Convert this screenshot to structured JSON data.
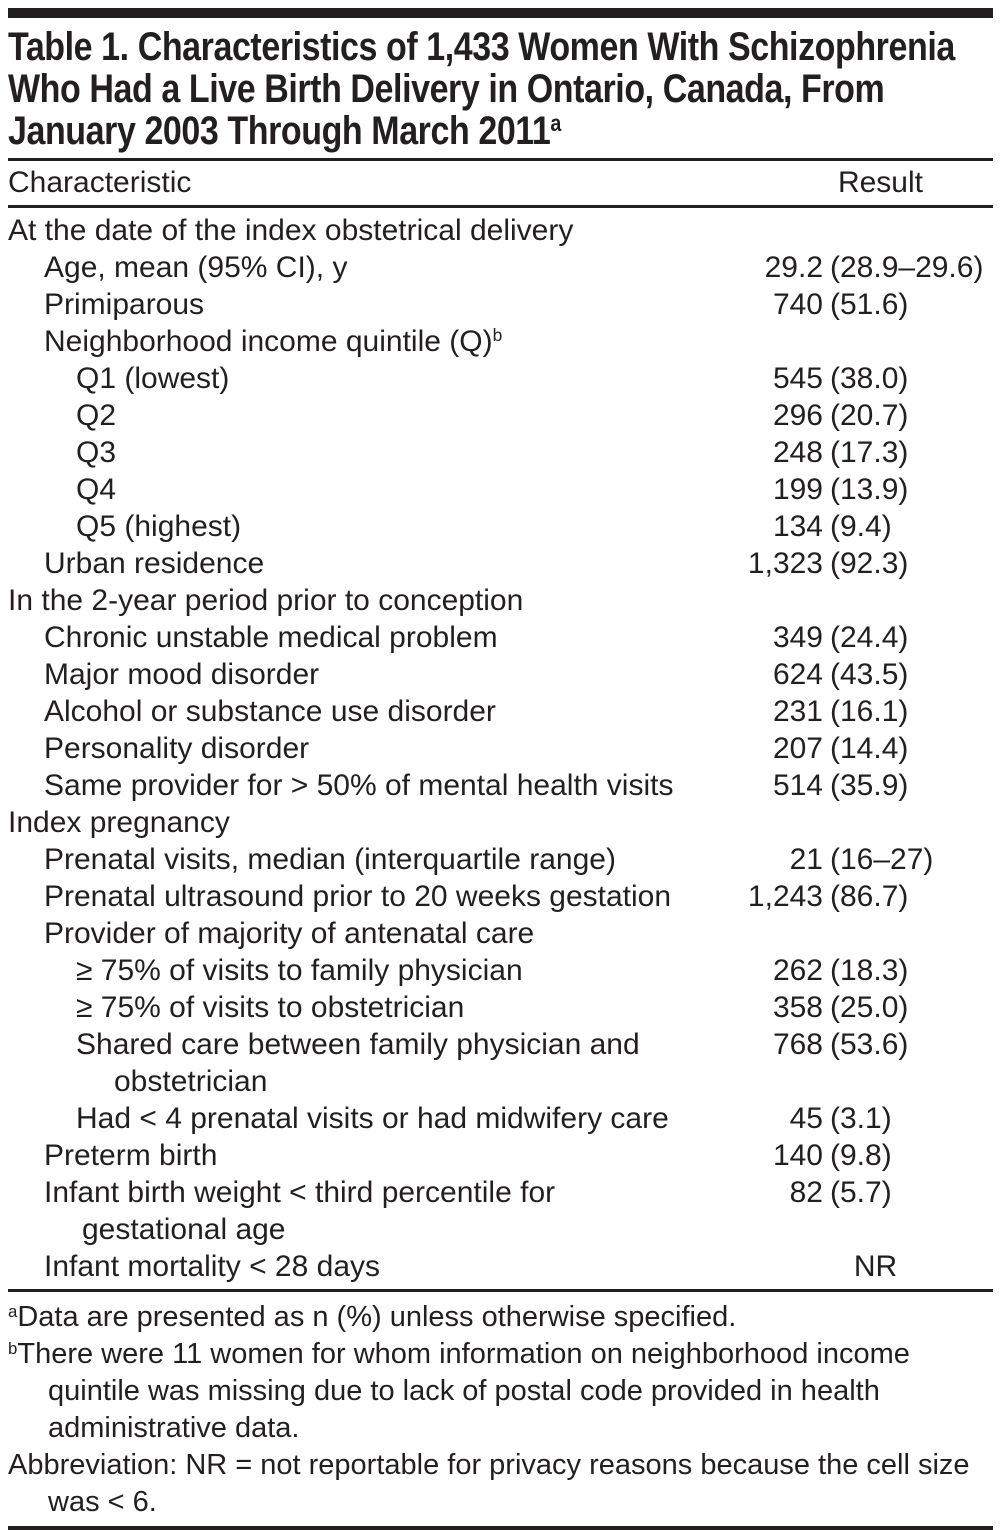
{
  "page": {
    "background": "#ffffff",
    "ink": "#231f20"
  },
  "table": {
    "title_lines": [
      "Table 1. Characteristics of 1,433 Women With Schizophrenia",
      "Who Had a Live Birth Delivery in Ontario, Canada, From",
      "January 2003 Through March 2011"
    ],
    "title_superscript": "a",
    "columns": {
      "characteristic": "Characteristic",
      "result": "Result"
    },
    "rows": [
      {
        "indent": 0,
        "label": "At the date of the index obstetrical delivery",
        "sup": "",
        "num": "",
        "paren": "",
        "center": false
      },
      {
        "indent": 1,
        "label": "Age, mean (95% CI), y",
        "sup": "",
        "num": "29.2",
        "paren": "(28.9–29.6)",
        "center": false
      },
      {
        "indent": 1,
        "label": "Primiparous",
        "sup": "",
        "num": "740",
        "paren": "(51.6)",
        "center": false
      },
      {
        "indent": 1,
        "label": "Neighborhood income quintile (Q)",
        "sup": "b",
        "num": "",
        "paren": "",
        "center": false
      },
      {
        "indent": 2,
        "label": "Q1 (lowest)",
        "sup": "",
        "num": "545",
        "paren": "(38.0)",
        "center": false
      },
      {
        "indent": 2,
        "label": "Q2",
        "sup": "",
        "num": "296",
        "paren": "(20.7)",
        "center": false
      },
      {
        "indent": 2,
        "label": "Q3",
        "sup": "",
        "num": "248",
        "paren": "(17.3)",
        "center": false
      },
      {
        "indent": 2,
        "label": "Q4",
        "sup": "",
        "num": "199",
        "paren": "(13.9)",
        "center": false
      },
      {
        "indent": 2,
        "label": "Q5 (highest)",
        "sup": "",
        "num": "134",
        "paren": "(9.4)",
        "center": false
      },
      {
        "indent": 1,
        "label": "Urban residence",
        "sup": "",
        "num": "1,323",
        "paren": "(92.3)",
        "center": false
      },
      {
        "indent": 0,
        "label": "In the 2-year period prior to conception",
        "sup": "",
        "num": "",
        "paren": "",
        "center": false
      },
      {
        "indent": 1,
        "label": "Chronic unstable medical problem",
        "sup": "",
        "num": "349",
        "paren": "(24.4)",
        "center": false
      },
      {
        "indent": 1,
        "label": "Major mood disorder",
        "sup": "",
        "num": "624",
        "paren": "(43.5)",
        "center": false
      },
      {
        "indent": 1,
        "label": "Alcohol or substance use disorder",
        "sup": "",
        "num": "231",
        "paren": "(16.1)",
        "center": false
      },
      {
        "indent": 1,
        "label": "Personality disorder",
        "sup": "",
        "num": "207",
        "paren": "(14.4)",
        "center": false
      },
      {
        "indent": 1,
        "label": "Same provider for > 50% of mental health visits",
        "sup": "",
        "num": "514",
        "paren": "(35.9)",
        "center": false
      },
      {
        "indent": 0,
        "label": "Index pregnancy",
        "sup": "",
        "num": "",
        "paren": "",
        "center": false
      },
      {
        "indent": 1,
        "label": "Prenatal visits, median (interquartile range)",
        "sup": "",
        "num": "21",
        "paren": "(16–27)",
        "center": false
      },
      {
        "indent": 1,
        "label": "Prenatal ultrasound prior to 20 weeks gestation",
        "sup": "",
        "num": "1,243",
        "paren": "(86.7)",
        "center": false
      },
      {
        "indent": 1,
        "label": "Provider of majority of antenatal care",
        "sup": "",
        "num": "",
        "paren": "",
        "center": false
      },
      {
        "indent": 2,
        "label": "≥ 75% of visits to family physician",
        "sup": "",
        "num": "262",
        "paren": "(18.3)",
        "center": false
      },
      {
        "indent": 2,
        "label": "≥ 75% of visits to obstetrician",
        "sup": "",
        "num": "358",
        "paren": "(25.0)",
        "center": false
      },
      {
        "indent": 2,
        "label": "Shared care between family physician and obstetrician",
        "sup": "",
        "num": "768",
        "paren": "(53.6)",
        "center": false
      },
      {
        "indent": 2,
        "label": "Had < 4 prenatal visits or had midwifery care",
        "sup": "",
        "num": "45",
        "paren": "(3.1)",
        "center": false
      },
      {
        "indent": 1,
        "label": "Preterm birth",
        "sup": "",
        "num": "140",
        "paren": "(9.8)",
        "center": false
      },
      {
        "indent": 1,
        "label": "Infant birth weight < third percentile for gestational age",
        "sup": "",
        "num": "82",
        "paren": "(5.7)",
        "center": false
      },
      {
        "indent": 1,
        "label": "Infant mortality < 28 days",
        "sup": "",
        "num": "NR",
        "paren": "",
        "center": true
      }
    ]
  },
  "footnotes": [
    {
      "sup": "a",
      "text": "Data are presented as n (%) unless otherwise specified."
    },
    {
      "sup": "b",
      "text": "There were 11 women for whom information on neighborhood income quintile was missing due to lack of postal code provided in health administrative data."
    },
    {
      "sup": "",
      "text": "Abbreviation: NR = not reportable for privacy reasons because the cell size was < 6."
    }
  ]
}
